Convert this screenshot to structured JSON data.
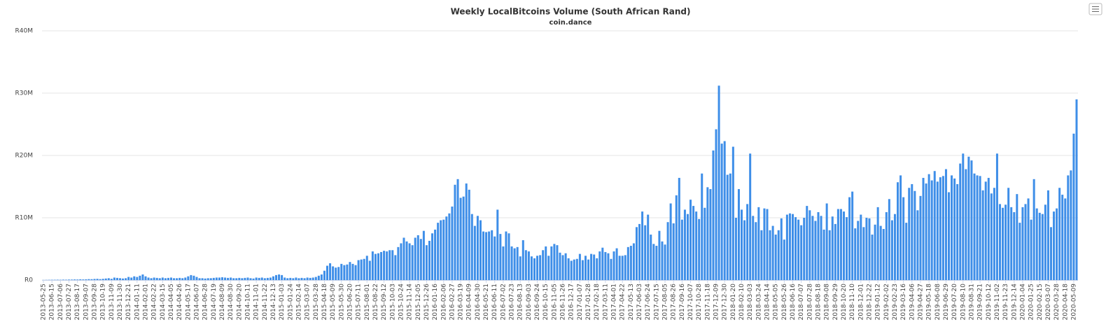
{
  "chart_data": {
    "type": "bar",
    "title": "Weekly LocalBitcoins Volume (South African Rand)",
    "subtitle": "coin.dance",
    "color": "#3e8ee8",
    "grid": true,
    "ylim": [
      0,
      40
    ],
    "yticks": [
      {
        "value": 0,
        "label": "R0"
      },
      {
        "value": 10,
        "label": "R10M"
      },
      {
        "value": 20,
        "label": "R20M"
      },
      {
        "value": 30,
        "label": "R30M"
      },
      {
        "value": 40,
        "label": "R40M"
      }
    ],
    "categories": [
      "2013-05-25",
      null,
      null,
      "2013-06-15",
      null,
      null,
      "2013-07-06",
      null,
      null,
      "2013-07-27",
      null,
      null,
      "2013-08-17",
      null,
      null,
      "2013-09-07",
      null,
      null,
      "2013-09-28",
      null,
      null,
      "2013-10-19",
      null,
      null,
      "2013-11-09",
      null,
      null,
      "2013-11-30",
      null,
      null,
      "2013-12-21",
      null,
      null,
      "2014-01-11",
      null,
      null,
      "2014-02-01",
      null,
      null,
      "2014-02-22",
      null,
      null,
      "2014-03-15",
      null,
      null,
      "2014-04-05",
      null,
      null,
      "2014-04-26",
      null,
      null,
      "2014-05-17",
      null,
      null,
      "2014-06-07",
      null,
      null,
      "2014-06-28",
      null,
      null,
      "2014-07-19",
      null,
      null,
      "2014-08-09",
      null,
      null,
      "2014-08-30",
      null,
      null,
      "2014-09-20",
      null,
      null,
      "2014-10-11",
      null,
      null,
      "2014-11-01",
      null,
      null,
      "2014-11-22",
      null,
      null,
      "2014-12-13",
      null,
      null,
      "2015-01-03",
      null,
      null,
      "2015-01-24",
      null,
      null,
      "2015-02-14",
      null,
      null,
      "2015-03-07",
      null,
      null,
      "2015-03-28",
      null,
      null,
      "2015-04-18",
      null,
      null,
      "2015-05-09",
      null,
      null,
      "2015-05-30",
      null,
      null,
      "2015-06-20",
      null,
      null,
      "2015-07-11",
      null,
      null,
      "2015-08-01",
      null,
      null,
      "2015-08-22",
      null,
      null,
      "2015-09-12",
      null,
      null,
      "2015-10-03",
      null,
      null,
      "2015-10-24",
      null,
      null,
      "2015-11-14",
      null,
      null,
      "2015-12-05",
      null,
      null,
      "2015-12-26",
      null,
      null,
      "2016-01-16",
      null,
      null,
      "2016-02-06",
      null,
      null,
      "2016-02-27",
      null,
      null,
      "2016-03-19",
      null,
      null,
      "2016-04-09",
      null,
      null,
      "2016-04-30",
      null,
      null,
      "2016-05-21",
      null,
      null,
      "2016-06-11",
      null,
      null,
      "2016-07-02",
      null,
      null,
      "2016-07-23",
      null,
      null,
      "2016-08-13",
      null,
      null,
      "2016-09-03",
      null,
      null,
      "2016-09-24",
      null,
      null,
      "2016-10-15",
      null,
      null,
      "2016-11-05",
      null,
      null,
      "2016-11-26",
      null,
      null,
      "2016-12-17",
      null,
      null,
      "2017-01-07",
      null,
      null,
      "2017-01-28",
      null,
      null,
      "2017-02-18",
      null,
      null,
      "2017-03-11",
      null,
      null,
      "2017-04-01",
      null,
      null,
      "2017-04-22",
      null,
      null,
      "2017-05-13",
      null,
      null,
      "2017-06-03",
      null,
      null,
      "2017-06-24",
      null,
      null,
      "2017-07-15",
      null,
      null,
      "2017-08-05",
      null,
      null,
      "2017-08-26",
      null,
      null,
      "2017-09-16",
      null,
      null,
      "2017-10-07",
      null,
      null,
      "2017-10-28",
      null,
      null,
      "2017-11-18",
      null,
      null,
      "2017-12-09",
      null,
      null,
      "2017-12-30",
      null,
      null,
      "2018-01-20",
      null,
      null,
      "2018-02-10",
      null,
      null,
      "2018-03-03",
      null,
      null,
      "2018-03-24",
      null,
      null,
      "2018-04-14",
      null,
      null,
      "2018-05-05",
      null,
      null,
      "2018-05-26",
      null,
      null,
      "2018-06-16",
      null,
      null,
      "2018-07-07",
      null,
      null,
      "2018-07-28",
      null,
      null,
      "2018-08-18",
      null,
      null,
      "2018-09-08",
      null,
      null,
      "2018-09-29",
      null,
      null,
      "2018-10-20",
      null,
      null,
      "2018-11-10",
      null,
      null,
      "2018-12-01",
      null,
      null,
      "2018-12-22",
      null,
      null,
      "2019-01-12",
      null,
      null,
      "2019-02-02",
      null,
      null,
      "2019-02-23",
      null,
      null,
      "2019-03-16",
      null,
      null,
      "2019-04-06",
      null,
      null,
      "2019-04-27",
      null,
      null,
      "2019-05-18",
      null,
      null,
      "2019-06-08",
      null,
      null,
      "2019-06-29",
      null,
      null,
      "2019-07-20",
      null,
      null,
      "2019-08-10",
      null,
      null,
      "2019-08-31",
      null,
      null,
      "2019-09-21",
      null,
      null,
      "2019-10-12",
      null,
      null,
      "2019-11-02",
      null,
      null,
      "2019-11-23",
      null,
      null,
      "2019-12-14",
      null,
      null,
      "2020-01-04",
      null,
      null,
      "2020-01-25",
      null,
      null,
      "2020-02-15",
      null,
      null,
      "2020-03-07",
      null,
      null,
      "2020-03-28",
      null,
      null,
      "2020-04-18",
      null,
      null,
      "2020-05-09",
      null
    ],
    "values": [
      0.02,
      0.03,
      0.04,
      0.05,
      0.05,
      0.06,
      0.05,
      0.07,
      0.06,
      0.08,
      0.08,
      0.1,
      0.09,
      0.12,
      0.1,
      0.12,
      0.15,
      0.14,
      0.18,
      0.2,
      0.15,
      0.2,
      0.25,
      0.3,
      0.2,
      0.4,
      0.35,
      0.3,
      0.25,
      0.3,
      0.5,
      0.4,
      0.6,
      0.5,
      0.7,
      0.9,
      0.6,
      0.4,
      0.3,
      0.4,
      0.35,
      0.3,
      0.4,
      0.3,
      0.35,
      0.4,
      0.3,
      0.3,
      0.35,
      0.3,
      0.4,
      0.6,
      0.8,
      0.7,
      0.5,
      0.3,
      0.3,
      0.25,
      0.3,
      0.3,
      0.35,
      0.4,
      0.4,
      0.45,
      0.4,
      0.35,
      0.4,
      0.3,
      0.3,
      0.35,
      0.3,
      0.35,
      0.4,
      0.3,
      0.25,
      0.4,
      0.35,
      0.4,
      0.3,
      0.35,
      0.4,
      0.6,
      0.8,
      0.9,
      0.8,
      0.4,
      0.3,
      0.35,
      0.3,
      0.4,
      0.3,
      0.35,
      0.3,
      0.4,
      0.35,
      0.4,
      0.5,
      0.7,
      0.9,
      1.5,
      2.3,
      2.7,
      2.2,
      2.0,
      2.1,
      2.6,
      2.4,
      2.5,
      2.9,
      2.6,
      2.4,
      3.2,
      3.3,
      3.4,
      3.9,
      3.1,
      4.6,
      4.2,
      4.3,
      4.5,
      4.7,
      4.6,
      4.8,
      4.8,
      4.0,
      5.3,
      5.9,
      6.8,
      6.2,
      5.9,
      5.6,
      6.8,
      7.2,
      6.6,
      7.9,
      5.6,
      6.3,
      7.5,
      8.1,
      9.2,
      9.6,
      9.7,
      10.2,
      10.7,
      11.8,
      15.3,
      16.2,
      13.2,
      13.4,
      15.5,
      14.5,
      10.6,
      8.7,
      10.3,
      9.6,
      7.8,
      7.7,
      7.8,
      8.0,
      7.0,
      11.3,
      7.4,
      5.4,
      7.8,
      7.5,
      5.4,
      5.1,
      5.3,
      3.8,
      6.4,
      4.8,
      4.6,
      3.8,
      3.5,
      3.9,
      4.0,
      4.8,
      5.4,
      3.9,
      5.4,
      5.8,
      5.6,
      4.4,
      4.0,
      4.3,
      3.5,
      3.1,
      3.3,
      3.4,
      4.2,
      3.2,
      3.9,
      3.3,
      4.2,
      4.1,
      3.5,
      4.6,
      5.2,
      4.5,
      4.3,
      3.4,
      4.6,
      5.1,
      3.9,
      3.9,
      4.0,
      5.3,
      5.5,
      5.9,
      8.5,
      9.0,
      11.0,
      8.8,
      10.5,
      7.3,
      5.8,
      5.5,
      7.9,
      6.2,
      5.7,
      9.3,
      12.3,
      9.1,
      13.6,
      16.4,
      9.7,
      11.3,
      10.6,
      12.9,
      11.9,
      11.0,
      9.8,
      17.1,
      11.6,
      14.9,
      14.6,
      20.8,
      24.2,
      31.2,
      21.9,
      22.3,
      16.9,
      17.1,
      21.4,
      10.0,
      14.6,
      11.3,
      9.6,
      12.2,
      20.3,
      10.3,
      9.3,
      11.7,
      8.0,
      11.5,
      11.4,
      8.0,
      8.7,
      7.3,
      8.0,
      9.9,
      6.5,
      10.5,
      10.7,
      10.6,
      10.1,
      9.7,
      8.8,
      10.0,
      11.9,
      11.2,
      10.3,
      9.5,
      10.9,
      10.3,
      8.1,
      12.3,
      8.0,
      10.2,
      9.0,
      11.4,
      11.4,
      11.0,
      10.1,
      13.3,
      14.2,
      8.3,
      9.5,
      10.5,
      8.5,
      10.0,
      9.9,
      7.3,
      8.9,
      11.7,
      8.7,
      8.2,
      10.9,
      13.0,
      9.6,
      10.6,
      15.7,
      16.8,
      13.3,
      9.2,
      14.8,
      15.4,
      14.3,
      11.2,
      13.5,
      16.4,
      15.5,
      17.0,
      16.0,
      17.5,
      15.8,
      16.5,
      16.7,
      17.8,
      14.1,
      16.8,
      16.3,
      15.4,
      18.7,
      20.3,
      17.8,
      19.8,
      19.2,
      17.1,
      16.8,
      16.7,
      14.4,
      15.8,
      16.4,
      13.9,
      14.8,
      20.3,
      12.2,
      11.6,
      12.1,
      14.8,
      11.7,
      10.9,
      13.8,
      9.2,
      11.7,
      12.2,
      13.1,
      9.7,
      16.2,
      11.5,
      10.8,
      10.6,
      12.1,
      14.4,
      8.5,
      11.0,
      11.5,
      14.8,
      13.7,
      13.1,
      16.8,
      17.6,
      23.5,
      29.0
    ]
  }
}
